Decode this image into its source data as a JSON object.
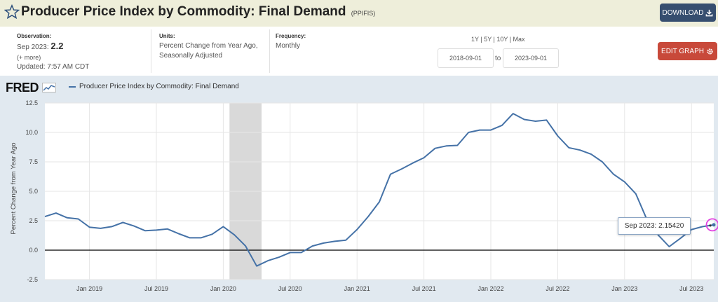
{
  "header": {
    "title": "Producer Price Index by Commodity: Final Demand",
    "series_id": "(PPIFIS)",
    "download_label": "DOWNLOAD"
  },
  "info": {
    "observation_label": "Observation:",
    "observation_date": "Sep 2023:",
    "observation_value": "2.2",
    "more": "(+ more)",
    "updated": "Updated: 7:57 AM CDT",
    "units_label": "Units:",
    "units_line1": "Percent Change from Year Ago,",
    "units_line2": "Seasonally Adjusted",
    "frequency_label": "Frequency:",
    "frequency_value": "Monthly",
    "ranges": "1Y | 5Y | 10Y | Max",
    "start_date": "2018-09-01",
    "to": "to",
    "end_date": "2023-09-01",
    "edit_label": "EDIT GRAPH"
  },
  "chart_header": {
    "logo": "FRED",
    "legend_label": "Producer Price Index by Commodity: Final Demand"
  },
  "tooltip": {
    "date": "Sep 2023:",
    "value": "2.15420"
  },
  "colors": {
    "series": "#4572a7",
    "recession": "#d9d9d9",
    "header_bg": "#eeeeda",
    "chart_bg": "#e1e9f0"
  },
  "chart_data": {
    "type": "line",
    "ylabel": "Percent Change from Year Ago",
    "ylim": [
      -2.5,
      12.5
    ],
    "yticks": [
      -2.5,
      0.0,
      2.5,
      5.0,
      7.5,
      10.0,
      12.5
    ],
    "ytick_labels": [
      "-2.5",
      "0.0",
      "2.5",
      "5.0",
      "7.5",
      "10.0",
      "12.5"
    ],
    "xlim": [
      "2018-09-01",
      "2023-09-01"
    ],
    "xticks": [
      "2019-01-01",
      "2019-07-01",
      "2020-01-01",
      "2020-07-01",
      "2021-01-01",
      "2021-07-01",
      "2022-01-01",
      "2022-07-01",
      "2023-01-01",
      "2023-07-01"
    ],
    "xtick_labels": [
      "Jan 2019",
      "Jul 2019",
      "Jan 2020",
      "Jul 2020",
      "Jan 2021",
      "Jul 2021",
      "Jan 2022",
      "Jul 2022",
      "Jan 2023",
      "Jul 2023"
    ],
    "recession": [
      "2020-02-01",
      "2020-04-01"
    ],
    "series": [
      {
        "name": "Producer Price Index by Commodity: Final Demand",
        "x": [
          "2018-09-01",
          "2018-10-01",
          "2018-11-01",
          "2018-12-01",
          "2019-01-01",
          "2019-02-01",
          "2019-03-01",
          "2019-04-01",
          "2019-05-01",
          "2019-06-01",
          "2019-07-01",
          "2019-08-01",
          "2019-09-01",
          "2019-10-01",
          "2019-11-01",
          "2019-12-01",
          "2020-01-01",
          "2020-02-01",
          "2020-03-01",
          "2020-04-01",
          "2020-05-01",
          "2020-06-01",
          "2020-07-01",
          "2020-08-01",
          "2020-09-01",
          "2020-10-01",
          "2020-11-01",
          "2020-12-01",
          "2021-01-01",
          "2021-02-01",
          "2021-03-01",
          "2021-04-01",
          "2021-05-01",
          "2021-06-01",
          "2021-07-01",
          "2021-08-01",
          "2021-09-01",
          "2021-10-01",
          "2021-11-01",
          "2021-12-01",
          "2022-01-01",
          "2022-02-01",
          "2022-03-01",
          "2022-04-01",
          "2022-05-01",
          "2022-06-01",
          "2022-07-01",
          "2022-08-01",
          "2022-09-01",
          "2022-10-01",
          "2022-11-01",
          "2022-12-01",
          "2023-01-01",
          "2023-02-01",
          "2023-03-01",
          "2023-04-01",
          "2023-05-01",
          "2023-06-01",
          "2023-07-01",
          "2023-08-01",
          "2023-09-01"
        ],
        "y": [
          2.85,
          3.15,
          2.75,
          2.65,
          1.95,
          1.85,
          2.0,
          2.35,
          2.05,
          1.65,
          1.7,
          1.8,
          1.4,
          1.05,
          1.05,
          1.35,
          2.0,
          1.3,
          0.35,
          -1.35,
          -0.9,
          -0.6,
          -0.2,
          -0.2,
          0.35,
          0.6,
          0.75,
          0.85,
          1.75,
          2.85,
          4.1,
          6.45,
          6.9,
          7.4,
          7.85,
          8.65,
          8.85,
          8.9,
          10.0,
          10.2,
          10.2,
          10.6,
          11.6,
          11.1,
          10.95,
          11.05,
          9.7,
          8.7,
          8.5,
          8.15,
          7.5,
          6.45,
          5.8,
          4.8,
          2.6,
          1.3,
          0.3,
          1.0,
          1.75,
          2.0,
          2.15
        ]
      }
    ]
  }
}
